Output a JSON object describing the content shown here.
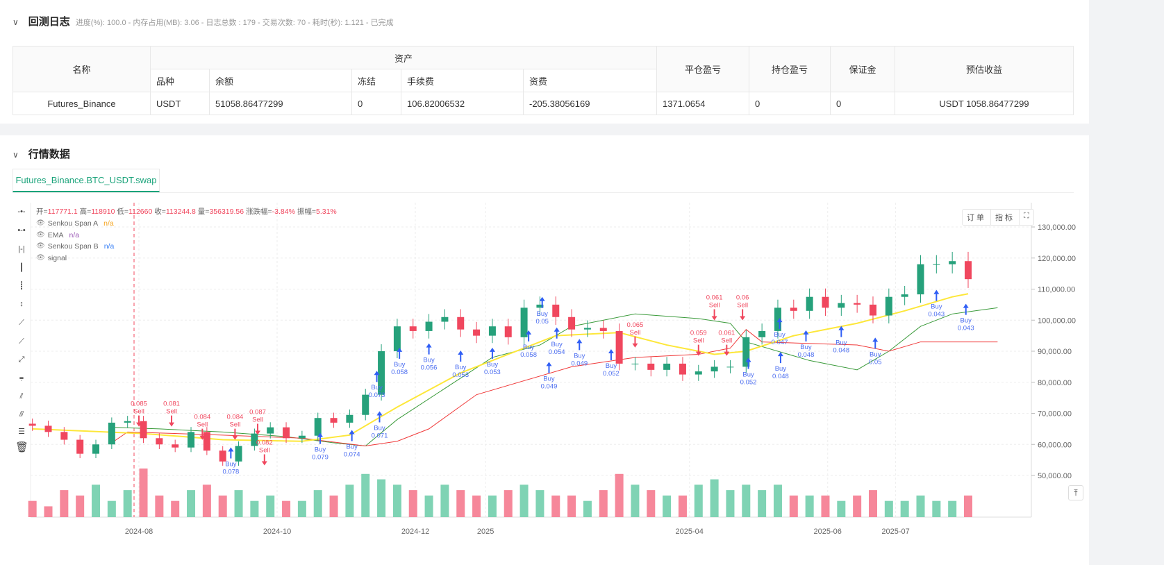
{
  "log": {
    "title": "回测日志",
    "meta": "进度(%): 100.0  - 内存占用(MB): 3.06 - 日志总数 : 179 - 交易次数:  70 - 耗时(秒): 1.121 - 已完成"
  },
  "table": {
    "h_name": "名称",
    "h_assets": "资产",
    "h_close_pnl": "平仓盈亏",
    "h_pos_pnl": "持仓盈亏",
    "h_margin": "保证金",
    "h_est": "预估收益",
    "h_symbol": "品种",
    "h_balance": "余额",
    "h_frozen": "冻结",
    "h_fee": "手续费",
    "h_funding": "资费",
    "row": {
      "name": "Futures_Binance",
      "symbol": "USDT",
      "balance": "51058.86477299",
      "frozen": "0",
      "fee": "106.82006532",
      "funding": "-205.38056169",
      "close_pnl": "1371.0654",
      "pos_pnl": "0",
      "margin": "0",
      "est": "USDT 1058.86477299"
    }
  },
  "market": {
    "title": "行情数据",
    "tab": "Futures_Binance.BTC_USDT.swap",
    "ohlc": {
      "open_l": "开=",
      "open": "117771.1",
      "high_l": " 高=",
      "high": "118910",
      "low_l": " 低=",
      "low": "112660",
      "close_l": " 收=",
      "close": "113244.8",
      "vol_l": " 量=",
      "vol": "356319.56",
      "chg_l": " 涨跌幅=",
      "chg": "-3.84%",
      "amp_l": " 振幅=",
      "amp": "5.31%"
    },
    "legend": [
      {
        "name": "Senkou Span A",
        "val": "n/a",
        "color": "#f5a623"
      },
      {
        "name": "EMA",
        "val": "n/a",
        "color": "#9b59b6"
      },
      {
        "name": "Senkou Span B",
        "val": "n/a",
        "color": "#3b82f6"
      },
      {
        "name": "signal",
        "val": "",
        "color": "#666"
      }
    ],
    "buttons": {
      "orders": "订单",
      "indicators": "指标",
      "fullscreen": "⛶"
    }
  },
  "chart_data": {
    "type": "candlestick",
    "y_ticks": [
      130000,
      120000,
      110000,
      100000,
      90000,
      80000,
      70000,
      60000,
      50000
    ],
    "y_tick_labels": [
      "130,000.00",
      "120,000.00",
      "110,000.00",
      "100,000.00",
      "90,000.00",
      "80,000.00",
      "70,000.00",
      "60,000.00",
      "50,000.00"
    ],
    "x_ticks": [
      "2024-08",
      "2024-10",
      "2024-12",
      "2025",
      "2025-04",
      "2025-06",
      "2025-07"
    ],
    "x_tick_dates": [
      "2024-08-01",
      "2024-10-01",
      "2024-12-01",
      "2025-01-01",
      "2025-04-01",
      "2025-06-01",
      "2025-07-01"
    ],
    "colors": {
      "up": "#26a17b",
      "down": "#f0475e",
      "ema": "#fde73a",
      "span_a": "#3a9a3a",
      "span_b": "#f03a3a",
      "buy": "#2f5ef5",
      "sell": "#f0475e"
    },
    "dates": [
      "2024-06-15",
      "2024-06-22",
      "2024-06-29",
      "2024-07-06",
      "2024-07-13",
      "2024-07-20",
      "2024-07-27",
      "2024-08-03",
      "2024-08-10",
      "2024-08-17",
      "2024-08-24",
      "2024-08-31",
      "2024-09-07",
      "2024-09-14",
      "2024-09-21",
      "2024-09-28",
      "2024-10-05",
      "2024-10-12",
      "2024-10-19",
      "2024-10-26",
      "2024-11-02",
      "2024-11-09",
      "2024-11-16",
      "2024-11-23",
      "2024-11-30",
      "2024-12-07",
      "2024-12-14",
      "2024-12-21",
      "2024-12-28",
      "2025-01-04",
      "2025-01-11",
      "2025-01-18",
      "2025-01-25",
      "2025-02-01",
      "2025-02-08",
      "2025-02-15",
      "2025-02-22",
      "2025-03-01",
      "2025-03-08",
      "2025-03-15",
      "2025-03-22",
      "2025-03-29",
      "2025-04-05",
      "2025-04-12",
      "2025-04-19",
      "2025-04-26",
      "2025-05-03",
      "2025-05-10",
      "2025-05-17",
      "2025-05-24",
      "2025-05-31",
      "2025-06-07",
      "2025-06-14",
      "2025-06-21",
      "2025-06-28",
      "2025-07-05",
      "2025-07-12",
      "2025-07-19",
      "2025-07-26",
      "2025-08-02"
    ],
    "close": [
      66000,
      64000,
      61500,
      57000,
      60000,
      67000,
      67500,
      62000,
      60000,
      59000,
      64000,
      58000,
      54500,
      59500,
      63500,
      65500,
      62000,
      62800,
      68500,
      67000,
      69500,
      76000,
      90000,
      98000,
      96500,
      99500,
      101000,
      97000,
      95000,
      98000,
      94500,
      104000,
      105000,
      101000,
      97000,
      97500,
      96500,
      86000,
      86000,
      84000,
      86000,
      82500,
      83500,
      85000,
      85000,
      94500,
      96500,
      104000,
      103000,
      107500,
      104000,
      105500,
      105000,
      101500,
      107500,
      108300,
      118000,
      118000,
      119000,
      113200
    ],
    "volume": [
      3,
      2,
      5,
      4,
      6,
      3,
      5,
      9,
      4,
      3,
      5,
      6,
      4,
      5,
      3,
      4,
      3,
      3,
      5,
      4,
      6,
      8,
      7,
      6,
      5,
      4,
      6,
      5,
      4,
      4,
      5,
      6,
      5,
      4,
      4,
      3,
      5,
      8,
      6,
      5,
      4,
      4,
      6,
      7,
      5,
      6,
      5,
      6,
      4,
      4,
      4,
      3,
      4,
      5,
      3,
      3,
      4,
      3,
      3,
      4
    ],
    "ema": [
      [
        "2024-06-15",
        65000
      ],
      [
        "2024-08-03",
        63500
      ],
      [
        "2024-09-07",
        61500
      ],
      [
        "2024-10-12",
        61000
      ],
      [
        "2024-11-02",
        63000
      ],
      [
        "2024-11-23",
        72000
      ],
      [
        "2024-12-21",
        83000
      ],
      [
        "2025-01-11",
        89000
      ],
      [
        "2025-02-01",
        95000
      ],
      [
        "2025-03-01",
        96000
      ],
      [
        "2025-03-22",
        92000
      ],
      [
        "2025-04-12",
        89000
      ],
      [
        "2025-04-26",
        90000
      ],
      [
        "2025-05-17",
        95000
      ],
      [
        "2025-06-14",
        99000
      ],
      [
        "2025-07-05",
        103000
      ],
      [
        "2025-07-26",
        107500
      ],
      [
        "2025-08-02",
        108500
      ]
    ],
    "span_a": [
      [
        "2024-07-20",
        65500
      ],
      [
        "2024-08-10",
        65000
      ],
      [
        "2024-09-07",
        64000
      ],
      [
        "2024-10-05",
        62500
      ],
      [
        "2024-10-26",
        60500
      ],
      [
        "2024-11-09",
        59500
      ],
      [
        "2024-11-23",
        68000
      ],
      [
        "2024-12-14",
        78000
      ],
      [
        "2025-01-04",
        88000
      ],
      [
        "2025-01-25",
        92000
      ],
      [
        "2025-02-08",
        98000
      ],
      [
        "2025-03-08",
        102000
      ],
      [
        "2025-04-05",
        100500
      ],
      [
        "2025-04-19",
        99000
      ],
      [
        "2025-04-26",
        93000
      ],
      [
        "2025-05-24",
        87000
      ],
      [
        "2025-06-14",
        84000
      ],
      [
        "2025-06-28",
        90000
      ],
      [
        "2025-07-12",
        98000
      ],
      [
        "2025-07-26",
        102000
      ],
      [
        "2025-08-15",
        104000
      ]
    ],
    "span_b": [
      [
        "2024-07-20",
        60500
      ],
      [
        "2024-07-27",
        64000
      ],
      [
        "2024-09-07",
        63000
      ],
      [
        "2024-10-12",
        62000
      ],
      [
        "2024-11-09",
        59500
      ],
      [
        "2024-11-23",
        61000
      ],
      [
        "2024-12-07",
        65000
      ],
      [
        "2024-12-28",
        76000
      ],
      [
        "2025-02-08",
        85000
      ],
      [
        "2025-03-08",
        88000
      ],
      [
        "2025-04-05",
        89000
      ],
      [
        "2025-04-19",
        91000
      ],
      [
        "2025-04-26",
        97000
      ],
      [
        "2025-05-03",
        93000
      ],
      [
        "2025-06-14",
        92000
      ],
      [
        "2025-06-28",
        90000
      ],
      [
        "2025-07-12",
        93000
      ],
      [
        "2025-08-15",
        93000
      ]
    ],
    "signals": [
      {
        "date": "2024-08-01",
        "type": "Sell",
        "qty": "0.085"
      },
      {
        "date": "2024-08-05",
        "type": "Sell",
        "qty": "0.081"
      },
      {
        "date": "2024-08-29",
        "type": "Sell",
        "qty": "0.084"
      },
      {
        "date": "2024-09-02",
        "type": "Sell",
        "qty": "0.084"
      },
      {
        "date": "2024-09-12",
        "type": "Sell",
        "qty": "0.087"
      },
      {
        "date": "2024-09-15",
        "type": "Sell",
        "qty": "0.082"
      },
      {
        "date": "2024-09-21",
        "type": "Buy",
        "qty": "0.078"
      },
      {
        "date": "2024-10-20",
        "type": "Buy",
        "qty": "0.079"
      },
      {
        "date": "2024-11-03",
        "type": "Buy",
        "qty": "0.074"
      },
      {
        "date": "2024-11-10",
        "type": "Buy",
        "qty": "0.071"
      },
      {
        "date": "2024-11-14",
        "type": "Buy",
        "qty": "0.073"
      },
      {
        "date": "2024-11-24",
        "type": "Buy",
        "qty": "0.058"
      },
      {
        "date": "2024-12-07",
        "type": "Buy",
        "qty": "0.056"
      },
      {
        "date": "2024-12-21",
        "type": "Buy",
        "qty": "0.053"
      },
      {
        "date": "2025-01-04",
        "type": "Buy",
        "qty": "0.053"
      },
      {
        "date": "2025-01-20",
        "type": "Buy",
        "qty": "0.058"
      },
      {
        "date": "2025-01-22",
        "type": "Buy",
        "qty": "0.054"
      },
      {
        "date": "2025-01-26",
        "type": "Buy",
        "qty": "0.05"
      },
      {
        "date": "2025-01-29",
        "type": "Buy",
        "qty": "0.049"
      },
      {
        "date": "2025-02-01",
        "type": "Buy",
        "qty": "0.049"
      },
      {
        "date": "2025-02-15",
        "type": "Buy",
        "qty": "0.052"
      },
      {
        "date": "2025-03-08",
        "type": "Sell",
        "qty": "0.065"
      },
      {
        "date": "2025-04-05",
        "type": "Sell",
        "qty": "0.059"
      },
      {
        "date": "2025-04-07",
        "type": "Sell",
        "qty": "0.061"
      },
      {
        "date": "2025-04-12",
        "type": "Sell",
        "qty": "0.061"
      },
      {
        "date": "2025-04-14",
        "type": "Sell",
        "qty": "0.06"
      },
      {
        "date": "2025-04-27",
        "type": "Buy",
        "qty": "0.052"
      },
      {
        "date": "2025-05-06",
        "type": "Buy",
        "qty": "0.048"
      },
      {
        "date": "2025-05-12",
        "type": "Buy",
        "qty": "0.048"
      },
      {
        "date": "2025-05-16",
        "type": "Buy",
        "qty": "0.047"
      },
      {
        "date": "2025-06-07",
        "type": "Buy",
        "qty": "0.048"
      },
      {
        "date": "2025-06-22",
        "type": "Buy",
        "qty": "0.05"
      },
      {
        "date": "2025-07-19",
        "type": "Buy",
        "qty": "0.043"
      },
      {
        "date": "2025-08-01",
        "type": "Buy",
        "qty": "0.043"
      }
    ]
  }
}
